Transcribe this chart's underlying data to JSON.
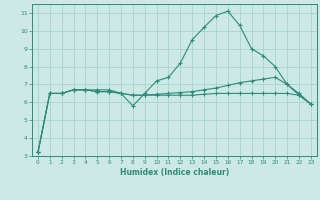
{
  "x": [
    0,
    1,
    2,
    3,
    4,
    5,
    6,
    7,
    8,
    9,
    10,
    11,
    12,
    13,
    14,
    15,
    16,
    17,
    18,
    19,
    20,
    21,
    22,
    23
  ],
  "line1": [
    3.2,
    6.5,
    6.5,
    6.7,
    6.7,
    6.7,
    6.7,
    6.5,
    5.8,
    6.5,
    7.2,
    7.4,
    8.2,
    9.5,
    10.2,
    10.85,
    11.1,
    10.3,
    9.0,
    8.6,
    8.0,
    7.0,
    6.4,
    5.9
  ],
  "line2": [
    3.2,
    6.5,
    6.5,
    6.7,
    6.7,
    6.6,
    6.6,
    6.5,
    6.4,
    6.4,
    6.45,
    6.5,
    6.55,
    6.6,
    6.7,
    6.8,
    6.95,
    7.1,
    7.2,
    7.3,
    7.4,
    7.0,
    6.5,
    5.9
  ],
  "line3": [
    3.2,
    6.5,
    6.5,
    6.7,
    6.7,
    6.6,
    6.6,
    6.5,
    6.4,
    6.4,
    6.4,
    6.4,
    6.4,
    6.4,
    6.45,
    6.5,
    6.5,
    6.5,
    6.5,
    6.5,
    6.5,
    6.5,
    6.4,
    5.9
  ],
  "color": "#2e8b7a",
  "bg_color": "#cce9e5",
  "grid_color": "#aad4cf",
  "xlabel": "Humidex (Indice chaleur)",
  "ylim": [
    3,
    11.5
  ],
  "xlim": [
    -0.5,
    23.5
  ],
  "yticks": [
    3,
    4,
    5,
    6,
    7,
    8,
    9,
    10,
    11
  ],
  "xticks": [
    0,
    1,
    2,
    3,
    4,
    5,
    6,
    7,
    8,
    9,
    10,
    11,
    12,
    13,
    14,
    15,
    16,
    17,
    18,
    19,
    20,
    21,
    22,
    23
  ]
}
